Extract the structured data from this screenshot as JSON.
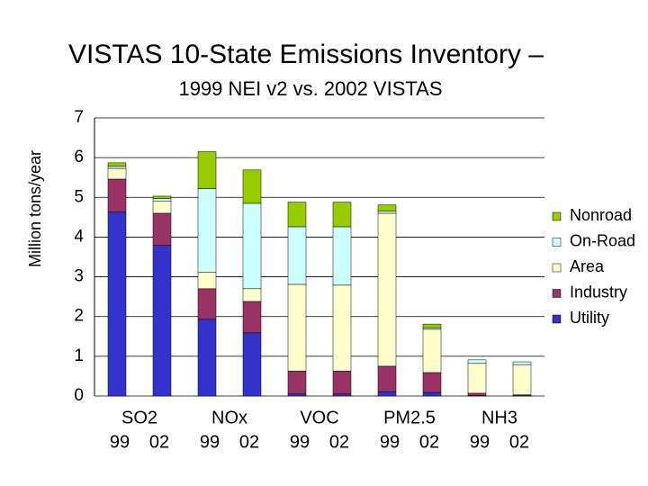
{
  "chart_data": {
    "type": "stacked-bar",
    "title": "VISTAS 10-State Emissions Inventory –",
    "subtitle": "1999 NEI v2 vs. 2002 VISTAS",
    "y_label": "Million tons/year",
    "groups": [
      "SO2",
      "NOx",
      "VOC",
      "PM2.5",
      "NH3"
    ],
    "categories": [
      "99",
      "02",
      "99",
      "02",
      "99",
      "02",
      "99",
      "02",
      "99",
      "02"
    ],
    "series": [
      {
        "name": "Utility",
        "color": "#3333cc",
        "values": [
          4.63,
          3.79,
          1.93,
          1.59,
          0.05,
          0.05,
          0.11,
          0.09,
          0.01,
          0.01
        ]
      },
      {
        "name": "Industry",
        "color": "#993366",
        "values": [
          0.83,
          0.81,
          0.77,
          0.79,
          0.58,
          0.58,
          0.64,
          0.5,
          0.06,
          0.02
        ]
      },
      {
        "name": "Area",
        "color": "#ffffcc",
        "values": [
          0.27,
          0.3,
          0.41,
          0.32,
          2.18,
          2.16,
          3.85,
          1.09,
          0.75,
          0.76
        ]
      },
      {
        "name": "On-Road",
        "color": "#ccffff",
        "values": [
          0.05,
          0.07,
          2.11,
          2.15,
          1.45,
          1.47,
          0.05,
          0.04,
          0.09,
          0.07
        ]
      },
      {
        "name": "Nonroad",
        "color": "#99cc00",
        "values": [
          0.09,
          0.06,
          0.93,
          0.84,
          0.62,
          0.62,
          0.16,
          0.09,
          0,
          0
        ]
      }
    ],
    "ylim": [
      0,
      7
    ],
    "yticks": [
      0,
      1,
      2,
      3,
      4,
      5,
      6,
      7
    ],
    "grid": true,
    "legend": "right"
  }
}
